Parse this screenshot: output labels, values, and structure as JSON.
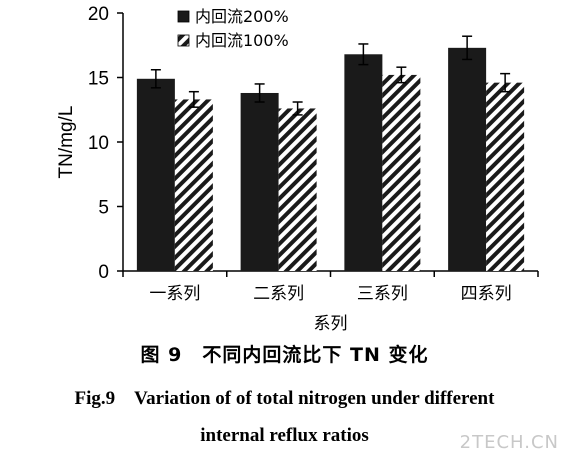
{
  "chart_data": {
    "type": "bar",
    "categories": [
      "一系列",
      "二系列",
      "三系列",
      "四系列"
    ],
    "series": [
      {
        "name": "内回流200%",
        "values": [
          14.9,
          13.8,
          16.8,
          17.3
        ],
        "errors": [
          0.7,
          0.7,
          0.8,
          0.9
        ],
        "color": "#1a1a1a",
        "pattern": "solid"
      },
      {
        "name": "内回流100%",
        "values": [
          13.3,
          12.6,
          15.2,
          14.6
        ],
        "errors": [
          0.6,
          0.5,
          0.6,
          0.7
        ],
        "color": "#1a1a1a",
        "pattern": "diagonal-hatch"
      }
    ],
    "xlabel": "系列",
    "ylabel": "TN/mg/L",
    "ylim": [
      0,
      20
    ],
    "yticks": [
      0,
      5,
      10,
      15,
      20
    ],
    "grid": false,
    "legend_position": "top-left"
  },
  "caption": {
    "cn": "图 9　不同内回流比下 TN 变化",
    "en_line1": "Fig.9　Variation of of total nitrogen under different",
    "en_line2": "internal reflux ratios"
  },
  "watermark": "2TECH.CN"
}
